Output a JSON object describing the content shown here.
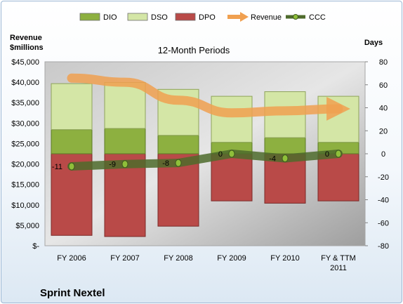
{
  "chart_data": {
    "type": "bar",
    "title": "12-Month Periods",
    "company": "Sprint Nextel",
    "y_left_label": [
      "Revenue",
      "$millions"
    ],
    "y_right_label": "Days",
    "categories": [
      "FY 2006",
      "FY 2007",
      "FY 2008",
      "FY 2009",
      "FY 2010",
      "FY & TTM 2011"
    ],
    "category_lines": [
      [
        "FY 2006"
      ],
      [
        "FY 2007"
      ],
      [
        "FY 2008"
      ],
      [
        "FY 2009"
      ],
      [
        "FY 2010"
      ],
      [
        "FY & TTM",
        "2011"
      ]
    ],
    "y_left_ticks": [
      "$45,000",
      "$40,000",
      "$35,000",
      "$30,000",
      "$25,000",
      "$20,000",
      "$15,000",
      "$10,000",
      "$5,000",
      "$-"
    ],
    "y_right_ticks": [
      "80",
      "60",
      "40",
      "20",
      "0",
      "-20",
      "-40",
      "-60",
      "-80"
    ],
    "y_right_range": [
      -80,
      80
    ],
    "y_left_range": [
      0,
      45000
    ],
    "legend_position": "top",
    "grid": false,
    "series": [
      {
        "name": "DPO",
        "kind": "stacked-bar",
        "values": [
          71,
          72,
          63,
          41,
          43,
          41
        ],
        "color": "#b94a48"
      },
      {
        "name": "DIO",
        "kind": "stacked-bar",
        "values": [
          21,
          22,
          16,
          10,
          14,
          10
        ],
        "color": "#8db040"
      },
      {
        "name": "DSO",
        "kind": "stacked-bar",
        "values": [
          40,
          40,
          40,
          40,
          40,
          40
        ],
        "color": "#d4e6a6"
      },
      {
        "name": "Revenue",
        "kind": "line",
        "axis": "left",
        "values": [
          41000,
          40000,
          35600,
          32500,
          33000,
          33500
        ],
        "color": "#f0a050"
      },
      {
        "name": "CCC",
        "kind": "line",
        "axis": "right",
        "values": [
          -11,
          -9,
          -8,
          0,
          -4,
          0
        ],
        "labels": [
          "-11",
          "-9",
          "-8",
          "0",
          "-4",
          "0"
        ],
        "color": "#4e6b2c"
      }
    ],
    "legend": [
      {
        "name": "DIO",
        "symbol": "box",
        "color": "#8db040"
      },
      {
        "name": "DSO",
        "symbol": "box",
        "color": "#d4e6a6"
      },
      {
        "name": "DPO",
        "symbol": "box",
        "color": "#b94a48"
      },
      {
        "name": "Revenue",
        "symbol": "arrow",
        "color": "#f0a050"
      },
      {
        "name": "CCC",
        "symbol": "line-marker",
        "color": "#4e6b2c"
      }
    ]
  }
}
